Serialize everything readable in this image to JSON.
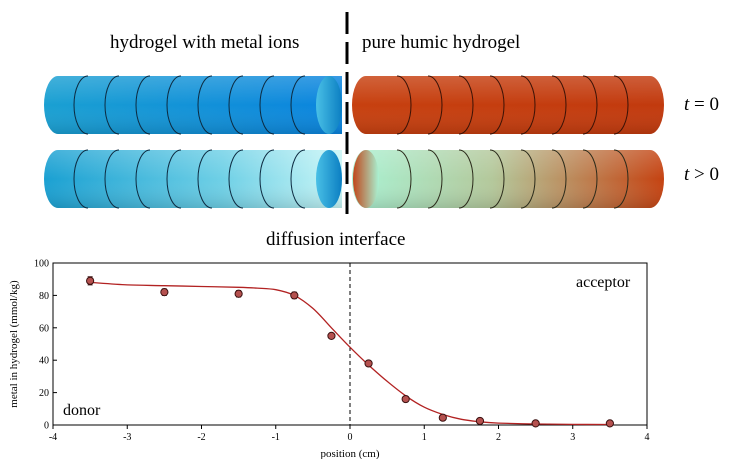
{
  "diagram": {
    "left_label": "hydrogel with metal ions",
    "right_label": "pure humic hydrogel",
    "interface_label": "diffusion interface",
    "row_top_label_var": "t",
    "row_top_label_op": " = 0",
    "row_bottom_label_var": "t",
    "row_bottom_label_op": " > 0",
    "colors": {
      "metal_blue_dark": "#0a8fd1",
      "metal_blue_light": "#c8f6f6",
      "humic_brown": "#c23a0e",
      "mint": "#a9f2d3"
    }
  },
  "chart_data": {
    "type": "scatter",
    "xlabel": "position (cm)",
    "ylabel": "metal in hydrogel (mmol/kg)",
    "xlim": [
      -4,
      4
    ],
    "ylim": [
      0,
      100
    ],
    "xticks": [
      -4,
      -3,
      -2,
      -1,
      0,
      1,
      2,
      3,
      4
    ],
    "yticks": [
      0,
      20,
      40,
      60,
      80,
      100
    ],
    "annotations": {
      "left": "donor",
      "right": "acceptor"
    },
    "vline_x": 0,
    "points": [
      {
        "x": -3.5,
        "y": 89,
        "err": 2.5
      },
      {
        "x": -2.5,
        "y": 82,
        "err": 2
      },
      {
        "x": -1.5,
        "y": 81,
        "err": 2
      },
      {
        "x": -0.75,
        "y": 80,
        "err": 2
      },
      {
        "x": -0.25,
        "y": 55,
        "err": 1
      },
      {
        "x": 0.25,
        "y": 38,
        "err": 1
      },
      {
        "x": 0.75,
        "y": 16,
        "err": 1
      },
      {
        "x": 1.25,
        "y": 4.5,
        "err": 1
      },
      {
        "x": 1.75,
        "y": 2.5,
        "err": 1
      },
      {
        "x": 2.5,
        "y": 1,
        "err": 0.5
      },
      {
        "x": 3.5,
        "y": 1,
        "err": 0.5
      }
    ],
    "fit": {
      "x": [
        -3.5,
        -3.0,
        -2.5,
        -2.0,
        -1.5,
        -1.25,
        -1.0,
        -0.75,
        -0.5,
        -0.25,
        0,
        0.25,
        0.5,
        0.75,
        1.0,
        1.25,
        1.5,
        1.75,
        2.0,
        2.5,
        3.0,
        3.5
      ],
      "y": [
        88,
        86.5,
        86,
        85.5,
        85,
        84.5,
        83.5,
        80,
        72,
        60,
        48,
        37,
        27,
        18,
        11,
        6.5,
        3.5,
        2,
        1.2,
        0.6,
        0.4,
        0.3
      ]
    },
    "colors": {
      "fit": "#b22222",
      "marker": "#b5514f",
      "marker_edge": "#3a1010"
    }
  }
}
